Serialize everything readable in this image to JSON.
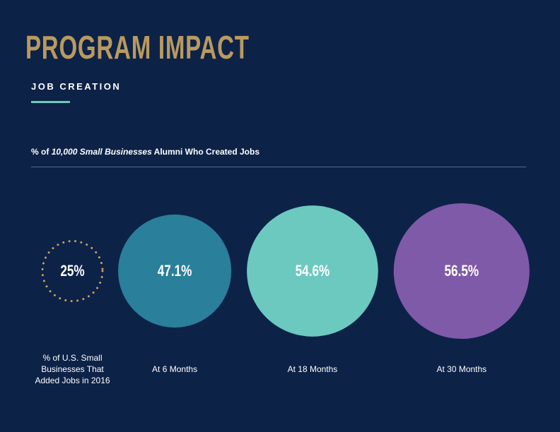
{
  "chart_data": {
    "type": "bubble",
    "title": "PROGRAM IMPACT",
    "subtitle": "JOB CREATION",
    "caption": [
      "% of",
      "10,000 Small Businesses",
      "Alumni Who Created Jobs"
    ],
    "categories": [
      "% of U.S. Small Businesses That Added Jobs in 2016",
      "At 6 Months",
      "At 18 Months",
      "At 30 Months"
    ],
    "values": [
      25,
      47.1,
      54.6,
      56.5
    ],
    "value_labels": [
      "25%",
      "47.1%",
      "54.6%",
      "56.5%"
    ],
    "colors": [
      "#c9a55c",
      "#2a7f9a",
      "#6cc9bf",
      "#7f5aa8"
    ],
    "styles": [
      "dotted",
      "filled",
      "filled",
      "filled"
    ]
  }
}
